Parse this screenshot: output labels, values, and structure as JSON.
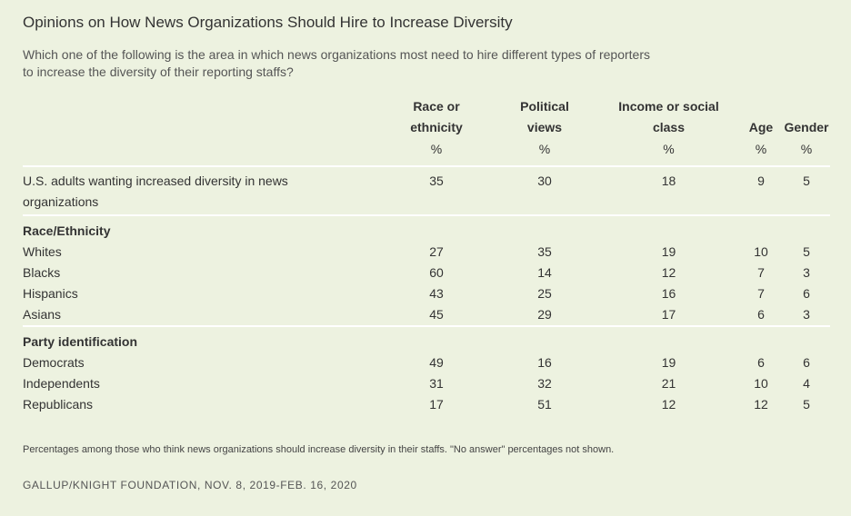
{
  "title": "Opinions on How News Organizations Should Hire to Increase Diversity",
  "subtitle": "Which one of the following is the area in which news organizations most need to hire different types of reporters to increase the diversity of their reporting staffs?",
  "chart_data": {
    "type": "table",
    "columns": [
      {
        "label": "Race or ethnicity",
        "line1": "Race or",
        "line2": "ethnicity",
        "unit": "%"
      },
      {
        "label": "Political views",
        "line1": "Political",
        "line2": "views",
        "unit": "%"
      },
      {
        "label": "Income or social class",
        "line1": "Income or social",
        "line2": "class",
        "unit": "%"
      },
      {
        "label": "Age",
        "line1": "",
        "line2": "Age",
        "unit": "%"
      },
      {
        "label": "Gender",
        "line1": "",
        "line2": "Gender",
        "unit": "%"
      }
    ],
    "total": {
      "label": "U.S. adults wanting increased diversity in news organizations",
      "line1": "U.S. adults wanting increased diversity in news",
      "line2": "organizations",
      "values": [
        35,
        30,
        18,
        9,
        5
      ]
    },
    "groups": [
      {
        "name": "Race/Ethnicity",
        "rows": [
          {
            "label": "Whites",
            "values": [
              27,
              35,
              19,
              10,
              5
            ]
          },
          {
            "label": "Blacks",
            "values": [
              60,
              14,
              12,
              7,
              3
            ]
          },
          {
            "label": "Hispanics",
            "values": [
              43,
              25,
              16,
              7,
              6
            ]
          },
          {
            "label": "Asians",
            "values": [
              45,
              29,
              17,
              6,
              3
            ]
          }
        ]
      },
      {
        "name": "Party identification",
        "rows": [
          {
            "label": "Democrats",
            "values": [
              49,
              16,
              19,
              6,
              6
            ]
          },
          {
            "label": "Independents",
            "values": [
              31,
              32,
              21,
              10,
              4
            ]
          },
          {
            "label": "Republicans",
            "values": [
              17,
              51,
              12,
              12,
              5
            ]
          }
        ]
      }
    ]
  },
  "footnote": "Percentages among those who think news organizations should increase diversity in their staffs. \"No answer\" percentages not shown.",
  "source": "GALLUP/KNIGHT FOUNDATION, NOV. 8, 2019-FEB. 16, 2020"
}
